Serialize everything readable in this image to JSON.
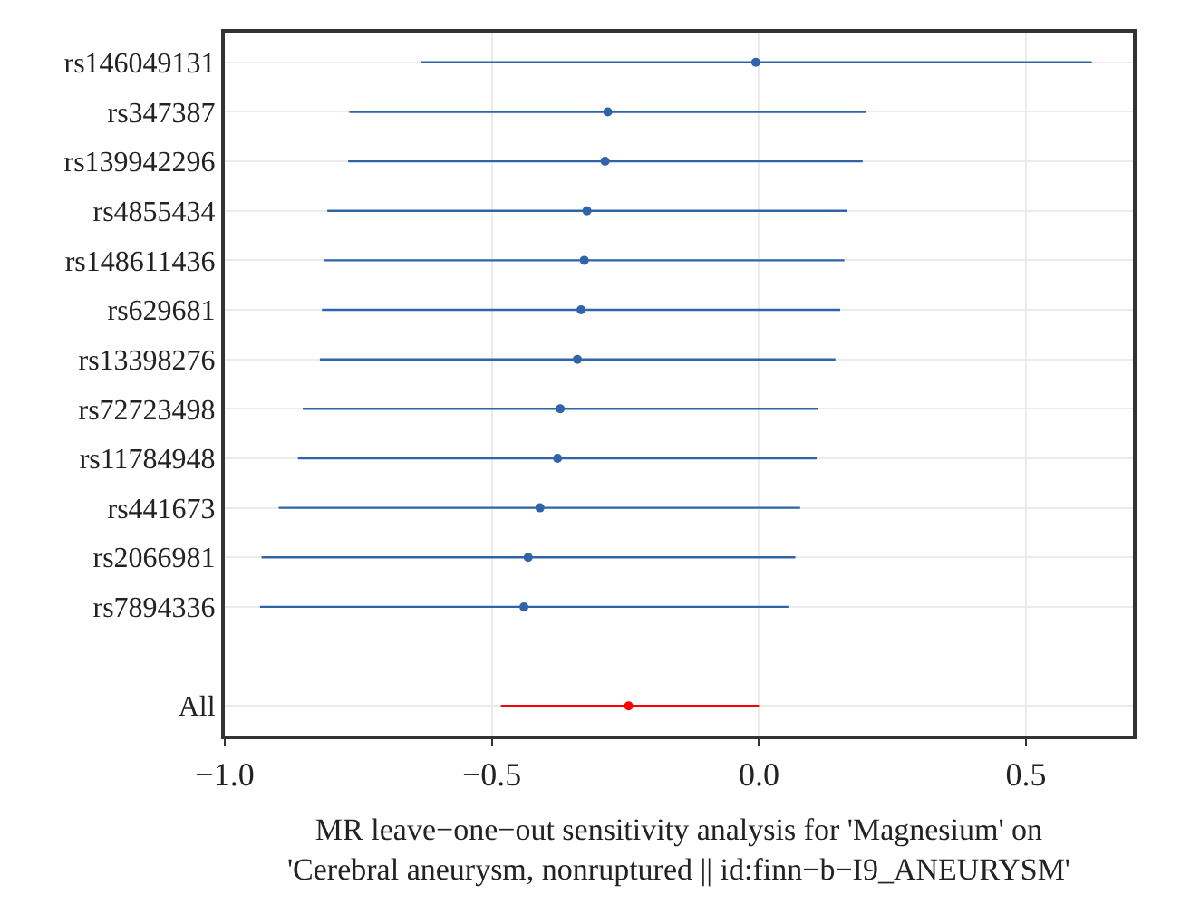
{
  "chart_data": {
    "type": "scatter",
    "orientation": "horizontal",
    "categories": [
      "rs146049131",
      "rs347387",
      "rs139942296",
      "rs4855434",
      "rs148611436",
      "rs629681",
      "rs13398276",
      "rs72723498",
      "rs11784948",
      "rs441673",
      "rs2066981",
      "rs7894336",
      null,
      "All"
    ],
    "series": [
      {
        "color": "#2f64a8",
        "values": [
          -0.006,
          -0.283,
          -0.288,
          -0.322,
          -0.327,
          -0.333,
          -0.34,
          -0.372,
          -0.377,
          -0.41,
          -0.432,
          -0.44,
          null,
          null
        ],
        "errors": [
          [
            -0.633,
            0.623
          ],
          [
            -0.767,
            0.201
          ],
          [
            -0.769,
            0.194
          ],
          [
            -0.808,
            0.165
          ],
          [
            -0.815,
            0.16
          ],
          [
            -0.818,
            0.152
          ],
          [
            -0.822,
            0.143
          ],
          [
            -0.854,
            0.11
          ],
          [
            -0.863,
            0.108
          ],
          [
            -0.899,
            0.077
          ],
          [
            -0.931,
            0.068
          ],
          [
            -0.934,
            0.055
          ],
          null,
          null
        ]
      },
      {
        "color": "#ff0000",
        "values": [
          null,
          null,
          null,
          null,
          null,
          null,
          null,
          null,
          null,
          null,
          null,
          null,
          null,
          -0.244
        ],
        "errors": [
          null,
          null,
          null,
          null,
          null,
          null,
          null,
          null,
          null,
          null,
          null,
          null,
          null,
          [
            -0.483,
            0.0
          ]
        ]
      }
    ],
    "xlabel": "MR leave−one−out sensitivity analysis for 'Magnesium' on\n'Cerebral aneurysm, nonruptured || id:finn−b−I9_ANEURYSM'",
    "xlim": [
      -1.0,
      0.7
    ],
    "xticks": [
      {
        "value": -1.0,
        "label": "−1.0"
      },
      {
        "value": -0.5,
        "label": "−0.5"
      },
      {
        "value": 0.0,
        "label": "0.0"
      },
      {
        "value": 0.5,
        "label": "0.5"
      }
    ],
    "ref_lines": [
      {
        "axis": "x",
        "value": 0,
        "color": "#555555",
        "line_style": "dotted"
      }
    ],
    "grid": true,
    "marker": "circle"
  }
}
